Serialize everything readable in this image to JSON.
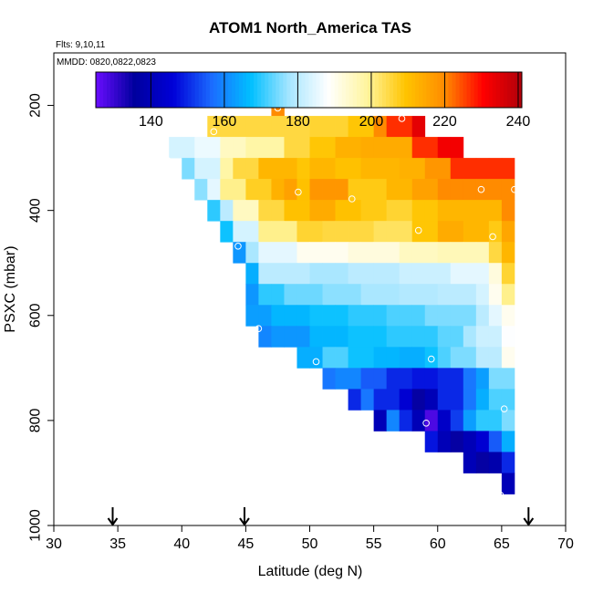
{
  "chart_data": {
    "type": "heatmap",
    "title": "ATOM1 North_America TAS",
    "flights_label": "Flts: 9,10,11",
    "date_label": "MMDD: 0820,0822,0823",
    "xlabel": "Latitude (deg N)",
    "ylabel": "PSXC (mbar)",
    "xlim": [
      30,
      70
    ],
    "ylim": [
      1000,
      100
    ],
    "x_ticks": [
      "30",
      "35",
      "40",
      "45",
      "50",
      "55",
      "60",
      "65",
      "70"
    ],
    "x_tick_values": [
      30,
      35,
      40,
      45,
      50,
      55,
      60,
      65,
      70
    ],
    "y_ticks": [
      "200",
      "400",
      "600",
      "800",
      "1000"
    ],
    "y_tick_values": [
      200,
      400,
      600,
      800,
      1000
    ],
    "colorbar": {
      "min": 125,
      "max": 241,
      "ticks": [
        "140",
        "160",
        "180",
        "200",
        "220",
        "240"
      ],
      "tick_values": [
        140,
        160,
        180,
        200,
        220,
        240
      ],
      "colors": [
        "#6a0dff",
        "#00009e",
        "#0000d8",
        "#1b6cff",
        "#00bfff",
        "#a8e6ff",
        "#ffffff",
        "#fff59e",
        "#ffc400",
        "#ff8c00",
        "#ff0000",
        "#b0000a"
      ]
    },
    "cell_width_deg": 1,
    "cell_height_mbar": 40,
    "rows": [
      {
        "p": 200,
        "cells": [
          [
            47,
            47,
            220
          ]
        ]
      },
      {
        "p": 240,
        "cells": [
          [
            42,
            49,
            205
          ],
          [
            50,
            52,
            206
          ],
          [
            53,
            54,
            209
          ],
          [
            55,
            55,
            220
          ],
          [
            56,
            57,
            227
          ],
          [
            58,
            58,
            234
          ]
        ]
      },
      {
        "p": 280,
        "cells": [
          [
            39,
            40,
            183
          ],
          [
            41,
            42,
            186
          ],
          [
            43,
            44,
            195
          ],
          [
            45,
            47,
            198
          ],
          [
            48,
            49,
            205
          ],
          [
            50,
            51,
            209
          ],
          [
            52,
            53,
            213
          ],
          [
            54,
            57,
            214
          ],
          [
            58,
            59,
            227
          ],
          [
            60,
            61,
            232
          ]
        ]
      },
      {
        "p": 320,
        "cells": [
          [
            40,
            40,
            175
          ],
          [
            41,
            42,
            183
          ],
          [
            43,
            43,
            198
          ],
          [
            44,
            45,
            205
          ],
          [
            46,
            48,
            212
          ],
          [
            49,
            49,
            209
          ],
          [
            50,
            51,
            212
          ],
          [
            52,
            53,
            210
          ],
          [
            54,
            56,
            212
          ],
          [
            57,
            58,
            213
          ],
          [
            59,
            60,
            218
          ],
          [
            61,
            65,
            227
          ]
        ]
      },
      {
        "p": 360,
        "cells": [
          [
            41,
            41,
            176
          ],
          [
            42,
            42,
            185
          ],
          [
            43,
            44,
            200
          ],
          [
            45,
            46,
            207
          ],
          [
            47,
            47,
            213
          ],
          [
            48,
            48,
            216
          ],
          [
            49,
            49,
            210
          ],
          [
            50,
            52,
            218
          ],
          [
            53,
            55,
            208
          ],
          [
            56,
            57,
            212
          ],
          [
            58,
            59,
            216
          ],
          [
            60,
            65,
            220
          ]
        ]
      },
      {
        "p": 400,
        "cells": [
          [
            42,
            42,
            170
          ],
          [
            43,
            43,
            180
          ],
          [
            44,
            45,
            195
          ],
          [
            46,
            47,
            205
          ],
          [
            48,
            49,
            210
          ],
          [
            50,
            51,
            214
          ],
          [
            52,
            53,
            210
          ],
          [
            54,
            55,
            208
          ],
          [
            56,
            57,
            206
          ],
          [
            58,
            59,
            209
          ],
          [
            60,
            64,
            212
          ],
          [
            65,
            65,
            220
          ]
        ]
      },
      {
        "p": 440,
        "cells": [
          [
            43,
            43,
            168
          ],
          [
            44,
            45,
            183
          ],
          [
            46,
            48,
            200
          ],
          [
            49,
            50,
            206
          ],
          [
            51,
            54,
            205
          ],
          [
            55,
            57,
            203
          ],
          [
            58,
            59,
            209
          ],
          [
            60,
            61,
            214
          ],
          [
            62,
            63,
            212
          ],
          [
            64,
            64,
            208
          ],
          [
            65,
            65,
            215
          ]
        ]
      },
      {
        "p": 480,
        "cells": [
          [
            44,
            44,
            162
          ],
          [
            45,
            45,
            178
          ],
          [
            46,
            48,
            185
          ],
          [
            49,
            52,
            190
          ],
          [
            53,
            56,
            192
          ],
          [
            57,
            59,
            195
          ],
          [
            60,
            63,
            196
          ],
          [
            64,
            64,
            205
          ],
          [
            65,
            65,
            212
          ]
        ]
      },
      {
        "p": 520,
        "cells": [
          [
            45,
            45,
            165
          ],
          [
            46,
            49,
            180
          ],
          [
            50,
            52,
            178
          ],
          [
            53,
            56,
            180
          ],
          [
            57,
            60,
            182
          ],
          [
            61,
            63,
            185
          ],
          [
            64,
            64,
            192
          ],
          [
            65,
            65,
            206
          ]
        ]
      },
      {
        "p": 560,
        "cells": [
          [
            45,
            45,
            162
          ],
          [
            46,
            47,
            170
          ],
          [
            48,
            50,
            174
          ],
          [
            51,
            53,
            176
          ],
          [
            54,
            56,
            178
          ],
          [
            57,
            59,
            179
          ],
          [
            60,
            62,
            180
          ],
          [
            63,
            63,
            183
          ],
          [
            64,
            64,
            190
          ],
          [
            65,
            65,
            200
          ]
        ]
      },
      {
        "p": 600,
        "cells": [
          [
            45,
            46,
            163
          ],
          [
            47,
            49,
            166
          ],
          [
            50,
            52,
            168
          ],
          [
            53,
            55,
            170
          ],
          [
            56,
            58,
            172
          ],
          [
            59,
            62,
            175
          ],
          [
            63,
            63,
            180
          ],
          [
            64,
            64,
            185
          ],
          [
            65,
            65,
            190
          ]
        ]
      },
      {
        "p": 640,
        "cells": [
          [
            46,
            46,
            160
          ],
          [
            47,
            49,
            162
          ],
          [
            50,
            52,
            166
          ],
          [
            53,
            55,
            168
          ],
          [
            56,
            59,
            170
          ],
          [
            60,
            61,
            173
          ],
          [
            62,
            62,
            178
          ],
          [
            63,
            64,
            182
          ],
          [
            65,
            65,
            188
          ]
        ]
      },
      {
        "p": 680,
        "cells": [
          [
            49,
            50,
            165
          ],
          [
            51,
            52,
            172
          ],
          [
            53,
            54,
            168
          ],
          [
            55,
            56,
            166
          ],
          [
            57,
            58,
            165
          ],
          [
            59,
            59,
            168
          ],
          [
            60,
            60,
            172
          ],
          [
            61,
            62,
            175
          ],
          [
            63,
            64,
            180
          ],
          [
            65,
            65,
            190
          ]
        ]
      },
      {
        "p": 720,
        "cells": [
          [
            51,
            51,
            158
          ],
          [
            52,
            53,
            160
          ],
          [
            54,
            55,
            155
          ],
          [
            56,
            57,
            150
          ],
          [
            58,
            59,
            148
          ],
          [
            60,
            61,
            150
          ],
          [
            62,
            62,
            158
          ],
          [
            63,
            63,
            163
          ],
          [
            64,
            65,
            175
          ]
        ]
      },
      {
        "p": 760,
        "cells": [
          [
            53,
            53,
            150
          ],
          [
            54,
            54,
            158
          ],
          [
            55,
            56,
            150
          ],
          [
            57,
            57,
            145
          ],
          [
            58,
            58,
            135
          ],
          [
            59,
            59,
            140
          ],
          [
            60,
            60,
            150
          ],
          [
            61,
            61,
            150
          ],
          [
            62,
            62,
            158
          ],
          [
            63,
            63,
            165
          ],
          [
            64,
            65,
            172
          ]
        ]
      },
      {
        "p": 800,
        "cells": [
          [
            55,
            55,
            140
          ],
          [
            56,
            56,
            160
          ],
          [
            57,
            57,
            150
          ],
          [
            58,
            58,
            140
          ],
          [
            59,
            59,
            128
          ],
          [
            60,
            60,
            143
          ],
          [
            61,
            61,
            152
          ],
          [
            62,
            62,
            163
          ],
          [
            63,
            63,
            170
          ],
          [
            64,
            64,
            170
          ],
          [
            65,
            65,
            175
          ]
        ]
      },
      {
        "p": 840,
        "cells": [
          [
            59,
            59,
            148
          ],
          [
            60,
            60,
            140
          ],
          [
            61,
            61,
            135
          ],
          [
            62,
            62,
            140
          ],
          [
            63,
            63,
            145
          ],
          [
            64,
            64,
            155
          ],
          [
            65,
            65,
            165
          ]
        ]
      },
      {
        "p": 880,
        "cells": [
          [
            62,
            62,
            140
          ],
          [
            63,
            63,
            135
          ],
          [
            64,
            64,
            138
          ],
          [
            65,
            65,
            150
          ]
        ]
      },
      {
        "p": 920,
        "cells": [
          [
            65,
            65,
            140
          ]
        ]
      }
    ],
    "flight_points": [
      {
        "lat": 47.5,
        "p": 205
      },
      {
        "lat": 51.8,
        "p": 212
      },
      {
        "lat": 57.2,
        "p": 225
      },
      {
        "lat": 42.5,
        "p": 250
      },
      {
        "lat": 38.9,
        "p": 305
      },
      {
        "lat": 63.4,
        "p": 360
      },
      {
        "lat": 66.0,
        "p": 360
      },
      {
        "lat": 49.1,
        "p": 365
      },
      {
        "lat": 53.3,
        "p": 378
      },
      {
        "lat": 58.5,
        "p": 438
      },
      {
        "lat": 64.3,
        "p": 450
      },
      {
        "lat": 44.4,
        "p": 468
      },
      {
        "lat": 46.0,
        "p": 625
      },
      {
        "lat": 50.5,
        "p": 688
      },
      {
        "lat": 59.5,
        "p": 683
      },
      {
        "lat": 65.2,
        "p": 778
      },
      {
        "lat": 59.1,
        "p": 805
      },
      {
        "lat": 64.9,
        "p": 942
      }
    ],
    "arrow_latitudes": [
      34.6,
      44.9,
      67.1
    ]
  }
}
